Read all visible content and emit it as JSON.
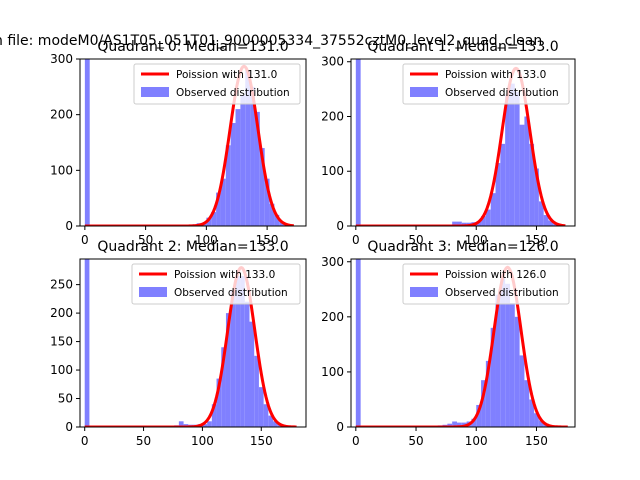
{
  "suptitle": "n file: modeM0/AS1T05_051T01_9000005334_37552cztM0_level2_quad_clean",
  "colors": {
    "hist": "#8080ff",
    "poisson": "#ff0000",
    "axes": "#000000"
  },
  "chart_data": [
    {
      "type": "bar",
      "title": "Quadrant 0: Median=131.0",
      "median": 131.0,
      "xlim": [
        -4,
        182
      ],
      "ylim": [
        0,
        300
      ],
      "xticks": [
        0,
        50,
        100,
        150
      ],
      "yticks": [
        0,
        100,
        200,
        300
      ],
      "legend_position": "upper-right",
      "series": [
        {
          "name": "Poission with 131.0",
          "kind": "line",
          "peak": 287,
          "mean": 131.0,
          "sigma": 11.5,
          "x_range": [
            0,
            172
          ]
        },
        {
          "name": "Observed distribution",
          "kind": "histogram",
          "x": [
            0,
            76,
            80,
            84,
            88,
            92,
            96,
            100,
            104,
            108,
            112,
            116,
            120,
            124,
            128,
            132,
            136,
            140,
            144,
            148,
            152,
            156,
            160,
            164,
            168
          ],
          "values": [
            300,
            1,
            2,
            2,
            3,
            5,
            4,
            15,
            25,
            60,
            85,
            145,
            185,
            210,
            235,
            280,
            250,
            205,
            140,
            85,
            40,
            20,
            8,
            3,
            1
          ]
        }
      ]
    },
    {
      "type": "bar",
      "title": "Quadrant 1: Median=133.0",
      "median": 133.0,
      "xlim": [
        -4,
        182
      ],
      "ylim": [
        0,
        305
      ],
      "xticks": [
        0,
        50,
        100,
        150
      ],
      "yticks": [
        0,
        100,
        200,
        300
      ],
      "legend_position": "upper-right",
      "series": [
        {
          "name": "Poission with 133.0",
          "kind": "line",
          "peak": 288,
          "mean": 133.0,
          "sigma": 11.5,
          "x_range": [
            0,
            174
          ]
        },
        {
          "name": "Observed distribution",
          "kind": "histogram",
          "x": [
            0,
            76,
            80,
            84,
            88,
            92,
            96,
            100,
            104,
            108,
            112,
            116,
            120,
            124,
            128,
            132,
            136,
            140,
            144,
            148,
            152,
            156,
            160,
            164,
            168
          ],
          "values": [
            305,
            1,
            8,
            8,
            6,
            6,
            7,
            8,
            18,
            30,
            60,
            115,
            150,
            240,
            260,
            245,
            185,
            200,
            150,
            105,
            45,
            20,
            10,
            4,
            1
          ]
        }
      ]
    },
    {
      "type": "bar",
      "title": "Quadrant 2: Median=133.0",
      "median": 133.0,
      "xlim": [
        -4,
        188
      ],
      "ylim": [
        0,
        295
      ],
      "xticks": [
        0,
        50,
        100,
        150
      ],
      "yticks": [
        0,
        50,
        100,
        150,
        200,
        250
      ],
      "legend_position": "upper-right",
      "series": [
        {
          "name": "Poission with 133.0",
          "kind": "line",
          "peak": 280,
          "mean": 133.0,
          "sigma": 11.5,
          "x_range": [
            0,
            180
          ]
        },
        {
          "name": "Observed distribution",
          "kind": "histogram",
          "x": [
            0,
            72,
            76,
            80,
            84,
            88,
            92,
            96,
            100,
            104,
            108,
            112,
            116,
            120,
            124,
            128,
            132,
            136,
            140,
            144,
            148,
            152,
            156,
            160,
            164,
            168,
            172
          ],
          "values": [
            295,
            2,
            3,
            10,
            5,
            4,
            4,
            5,
            5,
            10,
            40,
            85,
            140,
            200,
            240,
            265,
            265,
            220,
            185,
            125,
            70,
            40,
            20,
            10,
            5,
            3,
            1
          ]
        }
      ]
    },
    {
      "type": "bar",
      "title": "Quadrant 3: Median=126.0",
      "median": 126.0,
      "xlim": [
        -4,
        182
      ],
      "ylim": [
        0,
        305
      ],
      "xticks": [
        0,
        50,
        100,
        150
      ],
      "yticks": [
        0,
        100,
        200,
        300
      ],
      "legend_position": "upper-right",
      "series": [
        {
          "name": "Poission with 126.0",
          "kind": "line",
          "peak": 290,
          "mean": 126.0,
          "sigma": 11.2,
          "x_range": [
            0,
            176
          ]
        },
        {
          "name": "Observed distribution",
          "kind": "histogram",
          "x": [
            0,
            64,
            68,
            72,
            76,
            80,
            84,
            88,
            92,
            96,
            100,
            104,
            108,
            112,
            116,
            120,
            124,
            128,
            132,
            136,
            140,
            144,
            148,
            152,
            156,
            160,
            164
          ],
          "values": [
            305,
            2,
            3,
            4,
            6,
            10,
            8,
            8,
            10,
            15,
            40,
            85,
            120,
            180,
            240,
            270,
            260,
            225,
            200,
            130,
            85,
            50,
            25,
            12,
            6,
            3,
            1
          ]
        }
      ]
    }
  ]
}
